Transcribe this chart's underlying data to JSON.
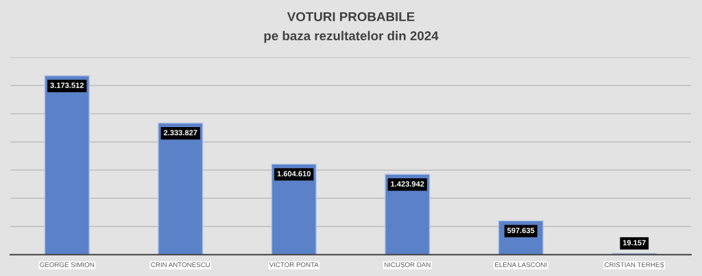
{
  "chart_data": {
    "type": "bar",
    "title": "VOTURI PROBABILE",
    "subtitle": "pe baza rezultatelor din 2024",
    "categories": [
      "GEORGE SIMION",
      "CRIN ANTONESCU",
      "VICTOR PONTA",
      "NICUȘOR DAN",
      "ELENA LASCONI",
      "CRISTIAN TERHEȘ"
    ],
    "values": [
      3173512,
      2333827,
      1604610,
      1423942,
      597635,
      19157
    ],
    "value_labels": [
      "3.173.512",
      "2.333.827",
      "1.604.610",
      "1.423.942",
      "597.635",
      "19.157"
    ],
    "color": "#5b82c8",
    "ylim": [
      0,
      3500000
    ],
    "yticks": [
      {
        "value": 0,
        "label": null
      },
      {
        "value": 500000,
        "label": null
      },
      {
        "value": 1000000,
        "label": null
      },
      {
        "value": 1500000,
        "label": null
      },
      {
        "value": 2000000,
        "label": null
      },
      {
        "value": 2500000,
        "label": null
      },
      {
        "value": 3000000,
        "label": null
      },
      {
        "value": 3500000,
        "label": null
      }
    ],
    "tick_labels": "x",
    "grid": "y"
  }
}
